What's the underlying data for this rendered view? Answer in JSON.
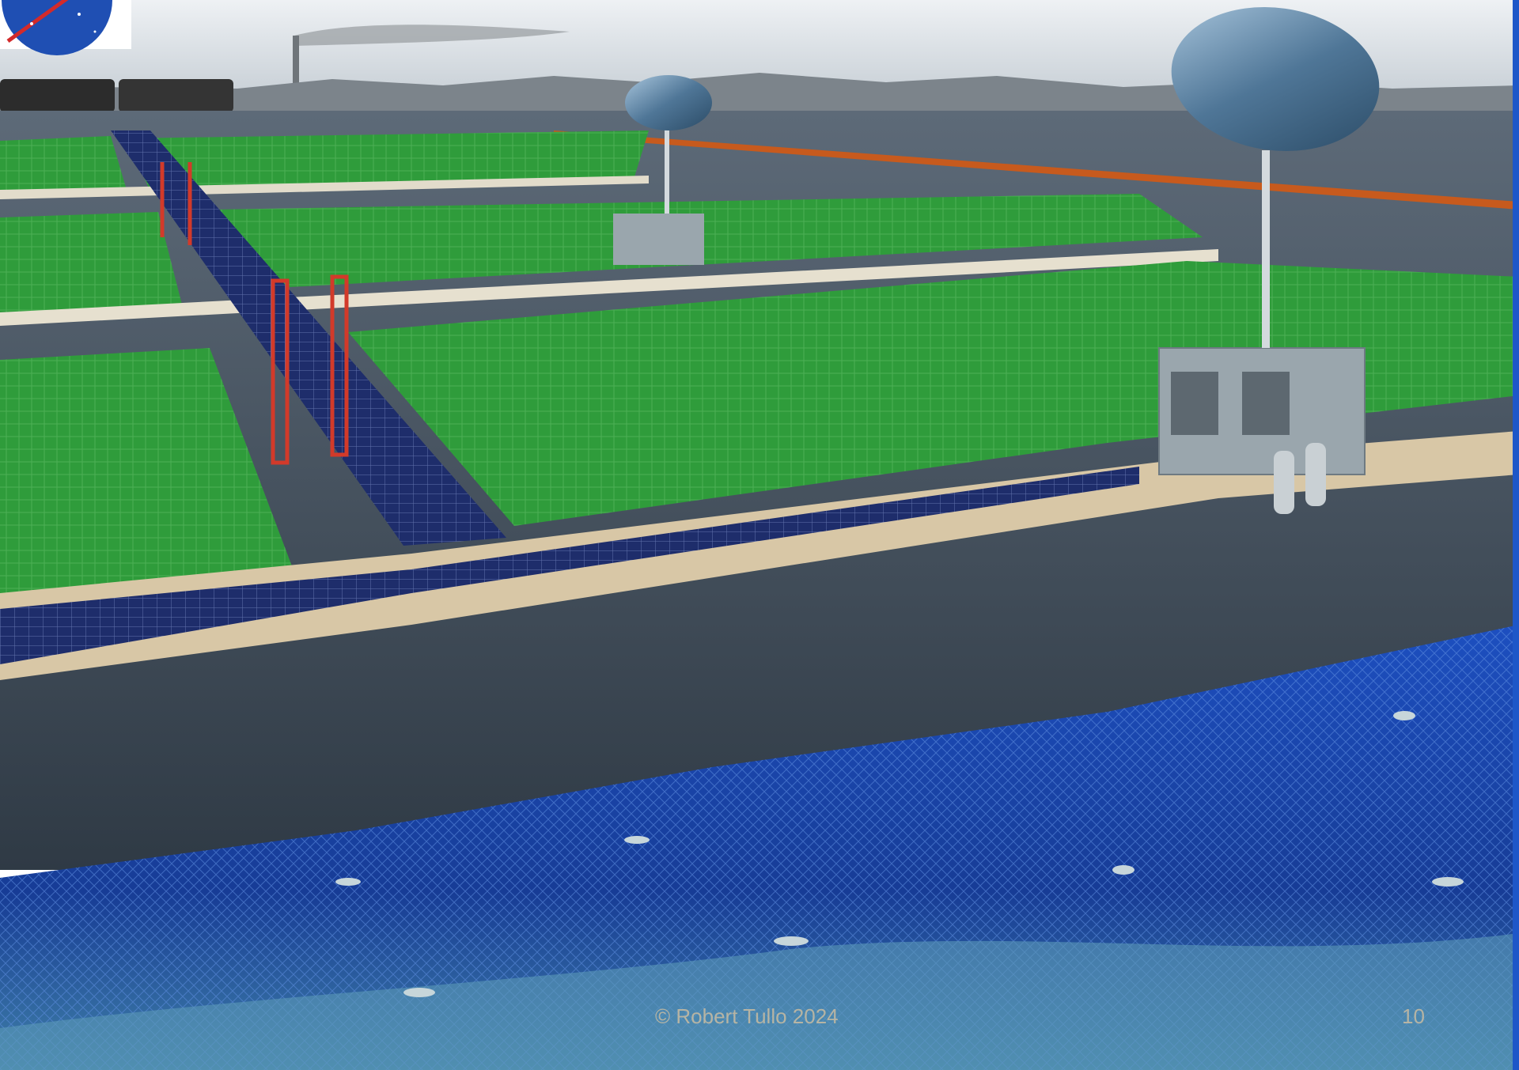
{
  "slide": {
    "footer_text": "© Robert Tullo 2024",
    "page_number": "10"
  },
  "colors": {
    "sky_top": "#dfe5ea",
    "sky_bottom": "#c9d2da",
    "sea_surface": "#3a4655",
    "underwater": "#1b47a8",
    "algae_green": "#2e9a3a",
    "algae_dark": "#1f6d2a",
    "solar_panel": "#1f2f6e",
    "walkway": "#d8c7a6",
    "boom": "#c5571c",
    "dish": "#5f86a8",
    "equipment": "#9aa6ad",
    "logo_blue": "#1f4fb3",
    "footer_text": "#d9c3a0",
    "edge_bar": "#1e57c8"
  },
  "icons": [
    "nasa-logo-icon"
  ]
}
